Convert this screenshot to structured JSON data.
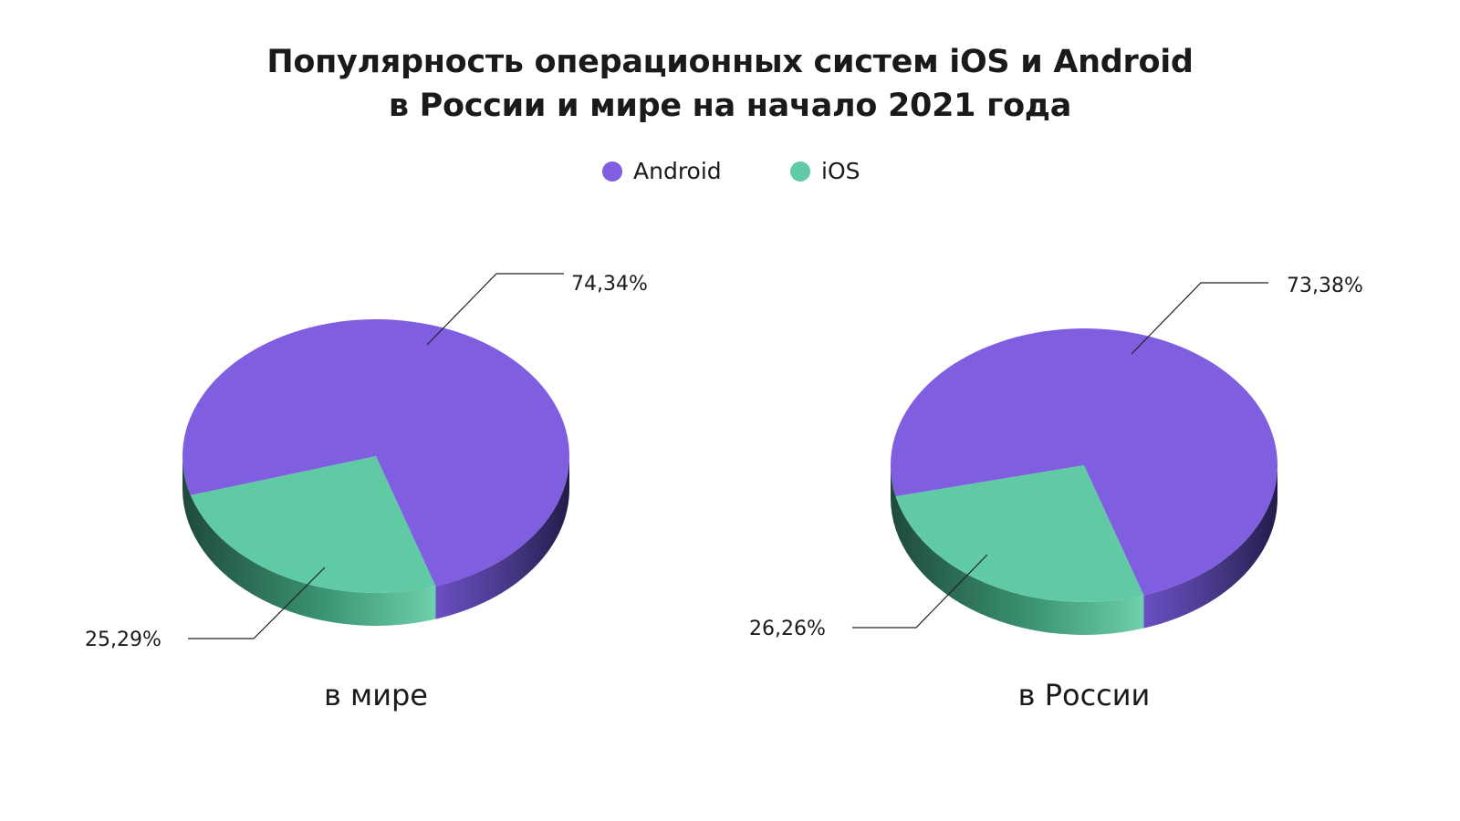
{
  "title_line1": "Популярность операционных систем iOS и Android",
  "title_line2": "в России и мире на начало 2021 года",
  "legend": [
    {
      "label": "Android",
      "color": "#7f5fe0"
    },
    {
      "label": "iOS",
      "color": "#5fcaa4"
    }
  ],
  "chart_data": [
    {
      "type": "pie",
      "label": "в мире",
      "slices": [
        {
          "name": "Android",
          "value": 74.34,
          "label": "74,34%",
          "color": "#7f5fe0"
        },
        {
          "name": "iOS",
          "value": 25.29,
          "label": "25,29%",
          "color": "#5fcaa4"
        }
      ]
    },
    {
      "type": "pie",
      "label": "в России",
      "slices": [
        {
          "name": "Android",
          "value": 73.38,
          "label": "73,38%",
          "color": "#7f5fe0"
        },
        {
          "name": "iOS",
          "value": 26.26,
          "label": "26,26%",
          "color": "#5fcaa4"
        }
      ]
    }
  ]
}
